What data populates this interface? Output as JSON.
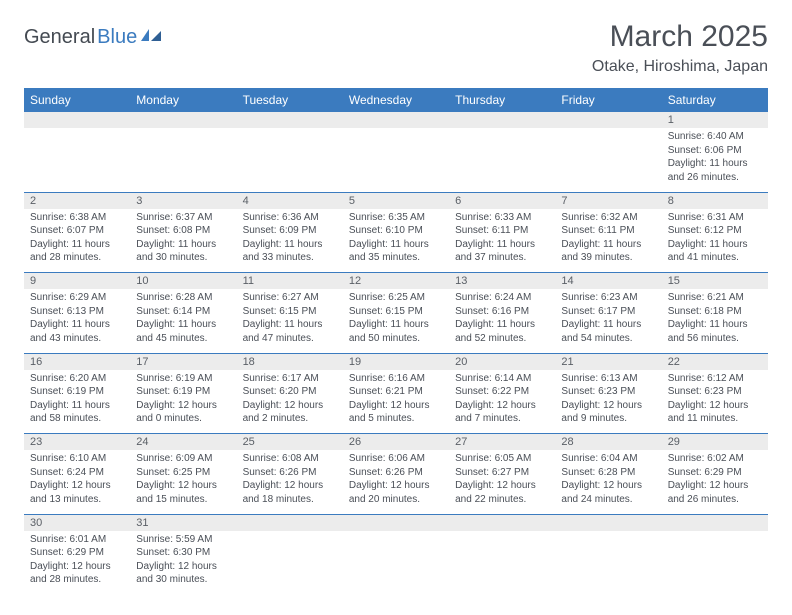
{
  "logo": {
    "general": "General",
    "blue": "Blue"
  },
  "title": "March 2025",
  "location": "Otake, Hiroshima, Japan",
  "colors": {
    "header_bg": "#3b7bbf",
    "header_text": "#ffffff",
    "daynum_bg": "#ececec",
    "divider": "#3b7bbf",
    "text": "#4a4f57"
  },
  "weekdays": [
    "Sunday",
    "Monday",
    "Tuesday",
    "Wednesday",
    "Thursday",
    "Friday",
    "Saturday"
  ],
  "weeks": [
    [
      null,
      null,
      null,
      null,
      null,
      null,
      {
        "n": "1",
        "sr": "Sunrise: 6:40 AM",
        "ss": "Sunset: 6:06 PM",
        "dl": "Daylight: 11 hours and 26 minutes."
      }
    ],
    [
      {
        "n": "2",
        "sr": "Sunrise: 6:38 AM",
        "ss": "Sunset: 6:07 PM",
        "dl": "Daylight: 11 hours and 28 minutes."
      },
      {
        "n": "3",
        "sr": "Sunrise: 6:37 AM",
        "ss": "Sunset: 6:08 PM",
        "dl": "Daylight: 11 hours and 30 minutes."
      },
      {
        "n": "4",
        "sr": "Sunrise: 6:36 AM",
        "ss": "Sunset: 6:09 PM",
        "dl": "Daylight: 11 hours and 33 minutes."
      },
      {
        "n": "5",
        "sr": "Sunrise: 6:35 AM",
        "ss": "Sunset: 6:10 PM",
        "dl": "Daylight: 11 hours and 35 minutes."
      },
      {
        "n": "6",
        "sr": "Sunrise: 6:33 AM",
        "ss": "Sunset: 6:11 PM",
        "dl": "Daylight: 11 hours and 37 minutes."
      },
      {
        "n": "7",
        "sr": "Sunrise: 6:32 AM",
        "ss": "Sunset: 6:11 PM",
        "dl": "Daylight: 11 hours and 39 minutes."
      },
      {
        "n": "8",
        "sr": "Sunrise: 6:31 AM",
        "ss": "Sunset: 6:12 PM",
        "dl": "Daylight: 11 hours and 41 minutes."
      }
    ],
    [
      {
        "n": "9",
        "sr": "Sunrise: 6:29 AM",
        "ss": "Sunset: 6:13 PM",
        "dl": "Daylight: 11 hours and 43 minutes."
      },
      {
        "n": "10",
        "sr": "Sunrise: 6:28 AM",
        "ss": "Sunset: 6:14 PM",
        "dl": "Daylight: 11 hours and 45 minutes."
      },
      {
        "n": "11",
        "sr": "Sunrise: 6:27 AM",
        "ss": "Sunset: 6:15 PM",
        "dl": "Daylight: 11 hours and 47 minutes."
      },
      {
        "n": "12",
        "sr": "Sunrise: 6:25 AM",
        "ss": "Sunset: 6:15 PM",
        "dl": "Daylight: 11 hours and 50 minutes."
      },
      {
        "n": "13",
        "sr": "Sunrise: 6:24 AM",
        "ss": "Sunset: 6:16 PM",
        "dl": "Daylight: 11 hours and 52 minutes."
      },
      {
        "n": "14",
        "sr": "Sunrise: 6:23 AM",
        "ss": "Sunset: 6:17 PM",
        "dl": "Daylight: 11 hours and 54 minutes."
      },
      {
        "n": "15",
        "sr": "Sunrise: 6:21 AM",
        "ss": "Sunset: 6:18 PM",
        "dl": "Daylight: 11 hours and 56 minutes."
      }
    ],
    [
      {
        "n": "16",
        "sr": "Sunrise: 6:20 AM",
        "ss": "Sunset: 6:19 PM",
        "dl": "Daylight: 11 hours and 58 minutes."
      },
      {
        "n": "17",
        "sr": "Sunrise: 6:19 AM",
        "ss": "Sunset: 6:19 PM",
        "dl": "Daylight: 12 hours and 0 minutes."
      },
      {
        "n": "18",
        "sr": "Sunrise: 6:17 AM",
        "ss": "Sunset: 6:20 PM",
        "dl": "Daylight: 12 hours and 2 minutes."
      },
      {
        "n": "19",
        "sr": "Sunrise: 6:16 AM",
        "ss": "Sunset: 6:21 PM",
        "dl": "Daylight: 12 hours and 5 minutes."
      },
      {
        "n": "20",
        "sr": "Sunrise: 6:14 AM",
        "ss": "Sunset: 6:22 PM",
        "dl": "Daylight: 12 hours and 7 minutes."
      },
      {
        "n": "21",
        "sr": "Sunrise: 6:13 AM",
        "ss": "Sunset: 6:23 PM",
        "dl": "Daylight: 12 hours and 9 minutes."
      },
      {
        "n": "22",
        "sr": "Sunrise: 6:12 AM",
        "ss": "Sunset: 6:23 PM",
        "dl": "Daylight: 12 hours and 11 minutes."
      }
    ],
    [
      {
        "n": "23",
        "sr": "Sunrise: 6:10 AM",
        "ss": "Sunset: 6:24 PM",
        "dl": "Daylight: 12 hours and 13 minutes."
      },
      {
        "n": "24",
        "sr": "Sunrise: 6:09 AM",
        "ss": "Sunset: 6:25 PM",
        "dl": "Daylight: 12 hours and 15 minutes."
      },
      {
        "n": "25",
        "sr": "Sunrise: 6:08 AM",
        "ss": "Sunset: 6:26 PM",
        "dl": "Daylight: 12 hours and 18 minutes."
      },
      {
        "n": "26",
        "sr": "Sunrise: 6:06 AM",
        "ss": "Sunset: 6:26 PM",
        "dl": "Daylight: 12 hours and 20 minutes."
      },
      {
        "n": "27",
        "sr": "Sunrise: 6:05 AM",
        "ss": "Sunset: 6:27 PM",
        "dl": "Daylight: 12 hours and 22 minutes."
      },
      {
        "n": "28",
        "sr": "Sunrise: 6:04 AM",
        "ss": "Sunset: 6:28 PM",
        "dl": "Daylight: 12 hours and 24 minutes."
      },
      {
        "n": "29",
        "sr": "Sunrise: 6:02 AM",
        "ss": "Sunset: 6:29 PM",
        "dl": "Daylight: 12 hours and 26 minutes."
      }
    ],
    [
      {
        "n": "30",
        "sr": "Sunrise: 6:01 AM",
        "ss": "Sunset: 6:29 PM",
        "dl": "Daylight: 12 hours and 28 minutes."
      },
      {
        "n": "31",
        "sr": "Sunrise: 5:59 AM",
        "ss": "Sunset: 6:30 PM",
        "dl": "Daylight: 12 hours and 30 minutes."
      },
      null,
      null,
      null,
      null,
      null
    ]
  ]
}
